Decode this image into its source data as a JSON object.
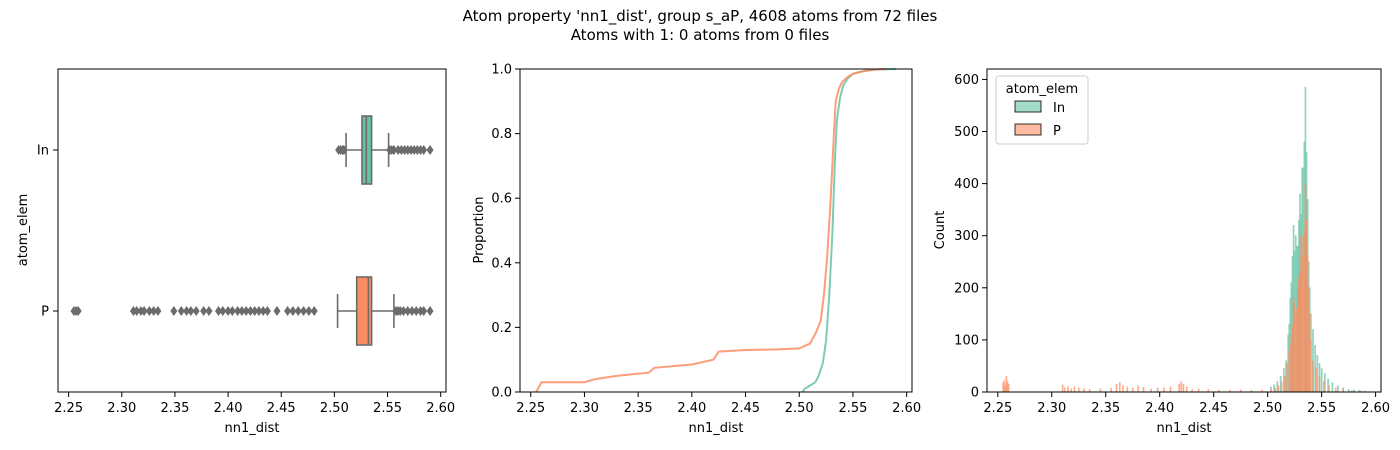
{
  "figure": {
    "title_line1": "Atom property 'nn1_dist', group s_aP, 4608 atoms from 72 files",
    "title_line2": "Atoms with 1: 0 atoms from 0 files"
  },
  "colors": {
    "In": "#66c2a5",
    "P": "#fc8d62",
    "box_line": "#6b6b6b"
  },
  "chart_data": [
    {
      "type": "box",
      "xlabel": "nn1_dist",
      "ylabel": "atom_elem",
      "xlim": [
        2.24,
        2.605
      ],
      "xticks": [
        2.25,
        2.3,
        2.35,
        2.4,
        2.45,
        2.5,
        2.55,
        2.6
      ],
      "xtick_labels": [
        "2.25",
        "2.30",
        "2.35",
        "2.40",
        "2.45",
        "2.50",
        "2.55",
        "2.60"
      ],
      "categories": [
        "In",
        "P"
      ],
      "boxes": [
        {
          "name": "In",
          "whisker_low": 2.511,
          "q1": 2.526,
          "median": 2.53,
          "q3": 2.535,
          "whisker_high": 2.551,
          "outliers": [
            2.504,
            2.506,
            2.508,
            2.509,
            2.552,
            2.554,
            2.556,
            2.56,
            2.563,
            2.566,
            2.569,
            2.572,
            2.575,
            2.578,
            2.581,
            2.584,
            2.59
          ]
        },
        {
          "name": "P",
          "whisker_low": 2.503,
          "q1": 2.521,
          "median": 2.532,
          "q3": 2.535,
          "whisker_high": 2.556,
          "outliers": [
            2.255,
            2.257,
            2.259,
            2.311,
            2.314,
            2.318,
            2.321,
            2.326,
            2.33,
            2.334,
            2.349,
            2.356,
            2.361,
            2.365,
            2.37,
            2.377,
            2.382,
            2.391,
            2.395,
            2.4,
            2.404,
            2.409,
            2.413,
            2.417,
            2.421,
            2.425,
            2.429,
            2.433,
            2.437,
            2.446,
            2.456,
            2.461,
            2.466,
            2.471,
            2.476,
            2.481,
            2.558,
            2.56,
            2.562,
            2.565,
            2.569,
            2.573,
            2.577,
            2.581,
            2.584,
            2.59
          ]
        }
      ]
    },
    {
      "type": "line",
      "xlabel": "nn1_dist",
      "ylabel": "Proportion",
      "xlim": [
        2.24,
        2.605
      ],
      "ylim": [
        0,
        1.0
      ],
      "xticks": [
        2.25,
        2.3,
        2.35,
        2.4,
        2.45,
        2.5,
        2.55,
        2.6
      ],
      "xtick_labels": [
        "2.25",
        "2.30",
        "2.35",
        "2.40",
        "2.45",
        "2.50",
        "2.55",
        "2.60"
      ],
      "yticks": [
        0.0,
        0.2,
        0.4,
        0.6,
        0.8,
        1.0
      ],
      "ytick_labels": [
        "0.0",
        "0.2",
        "0.4",
        "0.6",
        "0.8",
        "1.0"
      ],
      "series": [
        {
          "name": "In",
          "x": [
            2.503,
            2.505,
            2.51,
            2.515,
            2.518,
            2.522,
            2.525,
            2.528,
            2.531,
            2.533,
            2.535,
            2.538,
            2.541,
            2.545,
            2.55,
            2.555,
            2.562,
            2.57,
            2.58,
            2.59
          ],
          "y": [
            0.0,
            0.01,
            0.02,
            0.03,
            0.05,
            0.09,
            0.16,
            0.3,
            0.5,
            0.7,
            0.84,
            0.91,
            0.95,
            0.97,
            0.985,
            0.99,
            0.995,
            0.998,
            0.999,
            1.0
          ]
        },
        {
          "name": "P",
          "x": [
            2.255,
            2.26,
            2.3,
            2.31,
            2.33,
            2.36,
            2.365,
            2.4,
            2.42,
            2.425,
            2.45,
            2.48,
            2.5,
            2.51,
            2.515,
            2.52,
            2.523,
            2.526,
            2.529,
            2.532,
            2.534,
            2.537,
            2.54,
            2.545,
            2.55,
            2.56,
            2.57,
            2.58
          ],
          "y": [
            0.0,
            0.03,
            0.03,
            0.04,
            0.05,
            0.06,
            0.075,
            0.085,
            0.1,
            0.125,
            0.13,
            0.132,
            0.135,
            0.15,
            0.18,
            0.22,
            0.3,
            0.42,
            0.58,
            0.78,
            0.9,
            0.94,
            0.96,
            0.975,
            0.985,
            0.993,
            0.998,
            1.0
          ]
        }
      ]
    },
    {
      "type": "histogram",
      "xlabel": "nn1_dist",
      "ylabel": "Count",
      "xlim": [
        2.24,
        2.605
      ],
      "ylim": [
        0,
        620
      ],
      "xticks": [
        2.25,
        2.3,
        2.35,
        2.4,
        2.45,
        2.5,
        2.55,
        2.6
      ],
      "xtick_labels": [
        "2.25",
        "2.30",
        "2.35",
        "2.40",
        "2.45",
        "2.50",
        "2.55",
        "2.60"
      ],
      "yticks": [
        0,
        100,
        200,
        300,
        400,
        500,
        600
      ],
      "ytick_labels": [
        "0",
        "100",
        "200",
        "300",
        "400",
        "500",
        "600"
      ],
      "legend": {
        "title": "atom_elem",
        "entries": [
          "In",
          "P"
        ],
        "placement": "top-left"
      },
      "bin_width": 0.001,
      "series": [
        {
          "name": "In",
          "x": [
            2.503,
            2.506,
            2.509,
            2.512,
            2.515,
            2.517,
            2.519,
            2.52,
            2.521,
            2.522,
            2.523,
            2.524,
            2.525,
            2.526,
            2.527,
            2.528,
            2.529,
            2.53,
            2.531,
            2.532,
            2.533,
            2.534,
            2.535,
            2.536,
            2.537,
            2.538,
            2.539,
            2.54,
            2.542,
            2.544,
            2.546,
            2.548,
            2.55,
            2.553,
            2.556,
            2.56,
            2.565,
            2.57,
            2.575,
            2.58,
            2.585,
            2.59
          ],
          "y": [
            10,
            14,
            20,
            30,
            45,
            60,
            110,
            130,
            180,
            210,
            260,
            320,
            270,
            300,
            280,
            280,
            330,
            380,
            340,
            430,
            430,
            480,
            585,
            460,
            370,
            250,
            200,
            150,
            120,
            90,
            70,
            55,
            45,
            35,
            25,
            18,
            12,
            8,
            5,
            4,
            3,
            2
          ]
        },
        {
          "name": "P",
          "x": [
            2.255,
            2.256,
            2.257,
            2.258,
            2.259,
            2.26,
            2.31,
            2.312,
            2.315,
            2.318,
            2.321,
            2.325,
            2.33,
            2.335,
            2.345,
            2.355,
            2.36,
            2.363,
            2.366,
            2.37,
            2.375,
            2.38,
            2.385,
            2.392,
            2.398,
            2.404,
            2.41,
            2.418,
            2.42,
            2.422,
            2.425,
            2.43,
            2.436,
            2.445,
            2.455,
            2.465,
            2.475,
            2.485,
            2.495,
            2.503,
            2.507,
            2.51,
            2.513,
            2.516,
            2.518,
            2.52,
            2.521,
            2.522,
            2.523,
            2.524,
            2.525,
            2.526,
            2.527,
            2.528,
            2.529,
            2.53,
            2.531,
            2.532,
            2.533,
            2.534,
            2.535,
            2.536,
            2.537,
            2.538,
            2.539,
            2.54,
            2.542,
            2.545,
            2.548,
            2.552,
            2.557,
            2.563,
            2.57,
            2.578,
            2.586
          ],
          "y": [
            18,
            22,
            12,
            30,
            20,
            15,
            14,
            8,
            10,
            6,
            10,
            8,
            6,
            5,
            6,
            7,
            15,
            18,
            12,
            10,
            8,
            12,
            9,
            6,
            8,
            8,
            10,
            15,
            20,
            15,
            10,
            5,
            6,
            5,
            4,
            4,
            4,
            3,
            4,
            5,
            8,
            12,
            20,
            30,
            55,
            80,
            90,
            110,
            130,
            180,
            170,
            150,
            160,
            200,
            220,
            230,
            300,
            260,
            300,
            310,
            400,
            330,
            260,
            200,
            150,
            100,
            60,
            45,
            30,
            20,
            12,
            8,
            5,
            3,
            2
          ]
        }
      ]
    }
  ]
}
